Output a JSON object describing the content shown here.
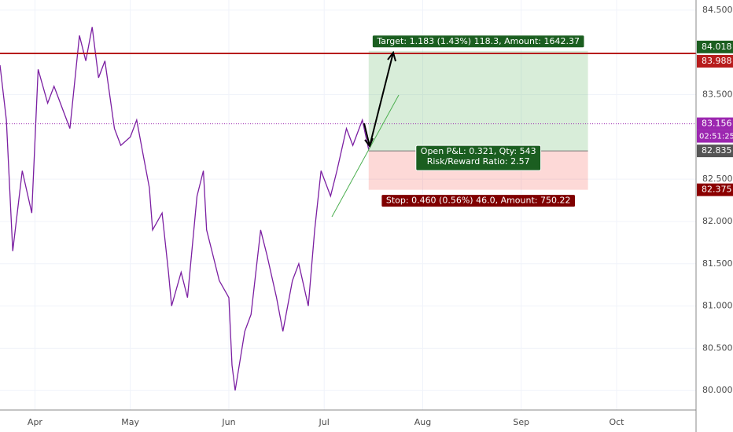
{
  "chart_data": {
    "type": "line",
    "color": "#7b1fa2",
    "x": [
      -11,
      -9,
      -7,
      -4,
      -1,
      1,
      4,
      6,
      9,
      11,
      14,
      16,
      18,
      20,
      22,
      25,
      27,
      30,
      32,
      34,
      36,
      37,
      40,
      42,
      43,
      46,
      48,
      51,
      53,
      54,
      56,
      58,
      61,
      62,
      63,
      66,
      68,
      71,
      73,
      76,
      78,
      81,
      83,
      86,
      88,
      90,
      93,
      95,
      98,
      100,
      103,
      105
    ],
    "values": [
      83.85,
      83.2,
      81.65,
      82.6,
      82.1,
      83.8,
      83.4,
      83.6,
      83.3,
      83.1,
      84.2,
      83.9,
      84.3,
      83.7,
      83.9,
      83.1,
      82.9,
      83.0,
      83.2,
      82.8,
      82.4,
      81.9,
      82.1,
      81.4,
      81.0,
      81.4,
      81.1,
      82.3,
      82.6,
      81.9,
      81.6,
      81.3,
      81.1,
      80.3,
      80.0,
      80.7,
      80.9,
      81.9,
      81.6,
      81.1,
      80.7,
      81.3,
      81.5,
      81.0,
      81.9,
      82.6,
      82.3,
      82.6,
      83.1,
      82.9,
      83.2,
      82.85
    ],
    "xlim": [
      -11,
      208
    ],
    "xticks": [
      {
        "value": 0,
        "label": "Apr"
      },
      {
        "value": 30,
        "label": "May"
      },
      {
        "value": 61,
        "label": "Jun"
      },
      {
        "value": 91,
        "label": "Jul"
      },
      {
        "value": 122,
        "label": "Aug"
      },
      {
        "value": 153,
        "label": "Sep"
      },
      {
        "value": 183,
        "label": "Oct"
      }
    ],
    "ylim": [
      79.77,
      84.62
    ],
    "yticks": [
      {
        "value": 80,
        "label": "80.000"
      },
      {
        "value": 80.5,
        "label": "80.500"
      },
      {
        "value": 81,
        "label": "81.000"
      },
      {
        "value": 81.5,
        "label": "81.500"
      },
      {
        "value": 82,
        "label": "82.000"
      },
      {
        "value": 82.5,
        "label": "82.500"
      },
      {
        "value": 83.5,
        "label": "83.500"
      },
      {
        "value": 84.5,
        "label": "84.500"
      }
    ],
    "grid": true,
    "horizontal_line": {
      "value": 83.988,
      "color": "#b71c1c"
    },
    "last_price": {
      "value": 83.156,
      "color": "#9c27b0",
      "countdown": "02:51:25"
    },
    "position": {
      "start": 105,
      "end": 174,
      "entry": 82.835,
      "target": 84.018,
      "stop": 82.375,
      "target_label": "Target: 1.183 (1.43%) 118.3, Amount: 1642.37",
      "pnl_label": "Open P&L: 0.321, Qty: 543",
      "ratio_label": "Risk/Reward Ratio: 2.57",
      "stop_label": "Stop: 0.460 (0.56%) 46.0, Amount: 750.22"
    }
  }
}
